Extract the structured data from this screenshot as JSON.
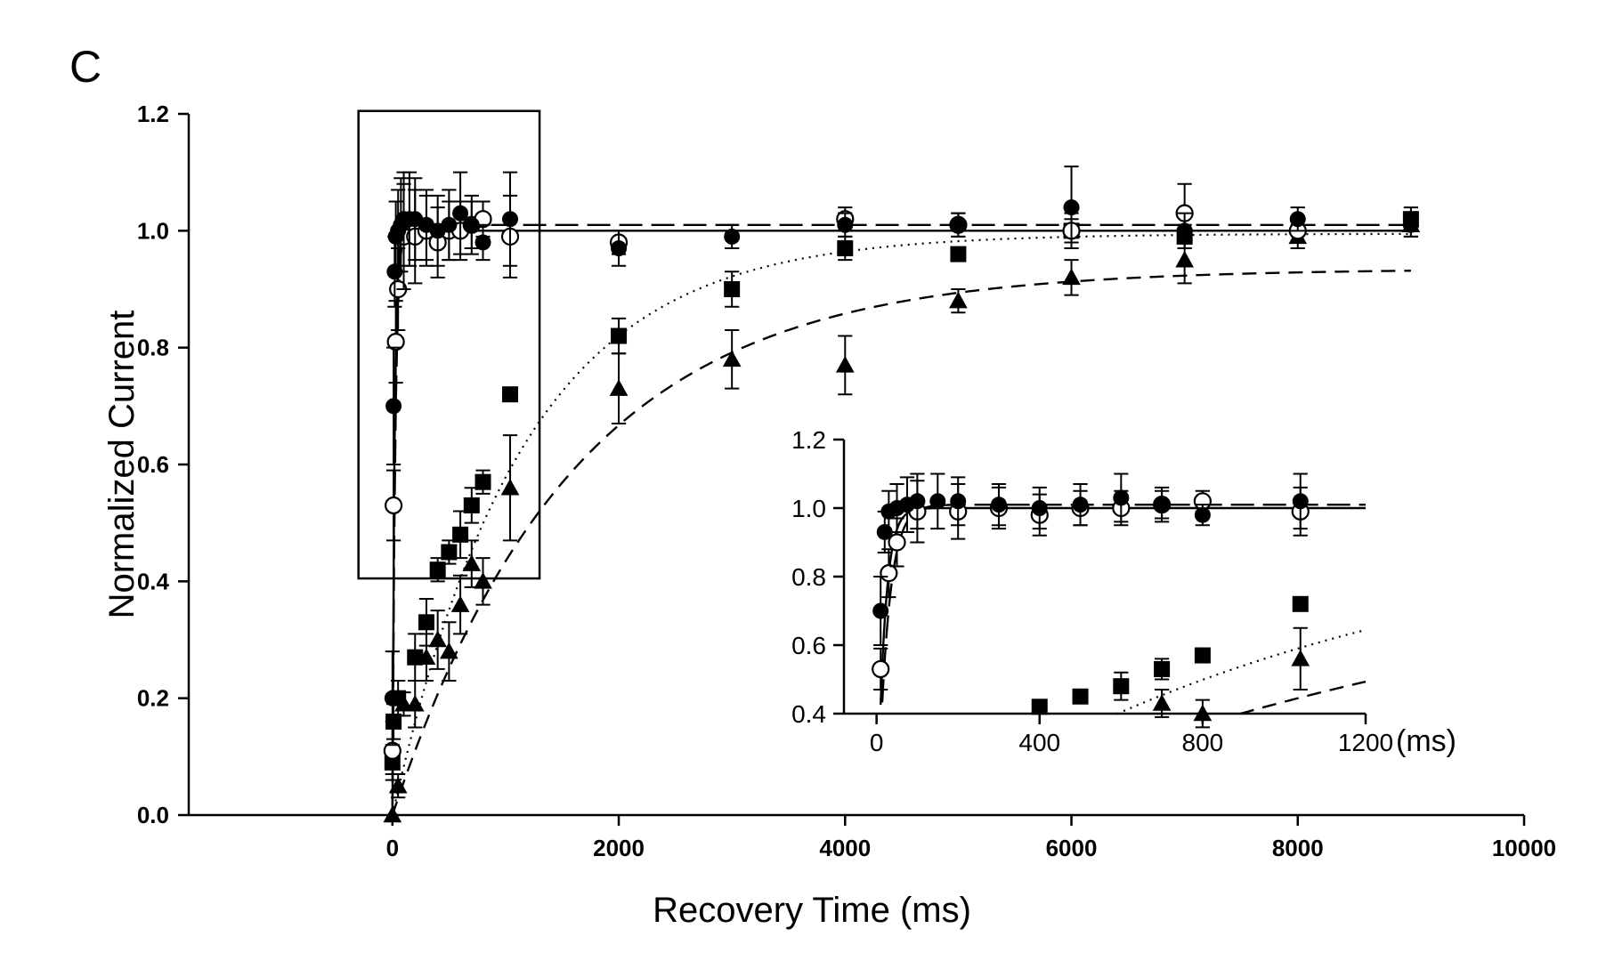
{
  "panel_label": "C",
  "chart_data": [
    {
      "type": "scatter",
      "xlabel": "Recovery Time (ms)",
      "ylabel": "Normalized Current",
      "xlim": [
        -1800,
        10000
      ],
      "ylim": [
        0,
        1.2
      ],
      "x_ticks": [
        0,
        2000,
        4000,
        6000,
        8000,
        10000
      ],
      "y_ticks": [
        0.0,
        0.2,
        0.4,
        0.6,
        0.8,
        1.0,
        1.2
      ],
      "x_tick_labels": [
        "0",
        "2000",
        "4000",
        "6000",
        "8000",
        "10000"
      ],
      "y_tick_labels": [
        "0.0",
        "0.2",
        "0.4",
        "0.6",
        "0.8",
        "1.0",
        "1.2"
      ],
      "zoom_box": {
        "x": [
          -300,
          1300
        ],
        "y": [
          0.405,
          1.205
        ]
      },
      "grid": false,
      "legend": "none",
      "series": [
        {
          "marker": "filled-circle",
          "points": [
            {
              "x": 0,
              "y": 0.2,
              "err": 0.08
            },
            {
              "x": 10,
              "y": 0.7,
              "err": 0.1
            },
            {
              "x": 20,
              "y": 0.93,
              "err": 0.06
            },
            {
              "x": 30,
              "y": 0.99,
              "err": 0.06
            },
            {
              "x": 50,
              "y": 1.0,
              "err": 0.07
            },
            {
              "x": 75,
              "y": 1.01,
              "err": 0.08
            },
            {
              "x": 100,
              "y": 1.02,
              "err": 0.08
            },
            {
              "x": 150,
              "y": 1.02,
              "err": 0.08
            },
            {
              "x": 200,
              "y": 1.02,
              "err": 0.07
            },
            {
              "x": 300,
              "y": 1.01,
              "err": 0.06
            },
            {
              "x": 400,
              "y": 1.0,
              "err": 0.06
            },
            {
              "x": 500,
              "y": 1.01,
              "err": 0.06
            },
            {
              "x": 600,
              "y": 1.03,
              "err": 0.07
            },
            {
              "x": 700,
              "y": 1.01,
              "err": 0.05
            },
            {
              "x": 800,
              "y": 0.98,
              "err": 0.03
            },
            {
              "x": 1040,
              "y": 1.02,
              "err": 0.08
            },
            {
              "x": 2000,
              "y": 0.97,
              "err": 0.03
            },
            {
              "x": 3000,
              "y": 0.99,
              "err": 0.02
            },
            {
              "x": 4000,
              "y": 1.01,
              "err": 0.02
            },
            {
              "x": 5000,
              "y": 1.01,
              "err": 0.02
            },
            {
              "x": 6000,
              "y": 1.04,
              "err": 0.07
            },
            {
              "x": 7000,
              "y": 1.0,
              "err": 0.03
            },
            {
              "x": 8000,
              "y": 1.02,
              "err": 0.02
            },
            {
              "x": 9000,
              "y": 1.01,
              "err": 0.02
            }
          ]
        },
        {
          "marker": "open-circle",
          "points": [
            {
              "x": 0,
              "y": 0.11,
              "err": 0.05
            },
            {
              "x": 10,
              "y": 0.53,
              "err": 0.06
            },
            {
              "x": 30,
              "y": 0.81,
              "err": 0.07
            },
            {
              "x": 50,
              "y": 0.9,
              "err": 0.07
            },
            {
              "x": 100,
              "y": 0.99,
              "err": 0.09
            },
            {
              "x": 200,
              "y": 0.99,
              "err": 0.08
            },
            {
              "x": 300,
              "y": 1.0,
              "err": 0.06
            },
            {
              "x": 400,
              "y": 0.98,
              "err": 0.06
            },
            {
              "x": 500,
              "y": 1.0,
              "err": 0.05
            },
            {
              "x": 600,
              "y": 1.0,
              "err": 0.05
            },
            {
              "x": 700,
              "y": 1.01,
              "err": 0.04
            },
            {
              "x": 800,
              "y": 1.02,
              "err": 0.03
            },
            {
              "x": 1040,
              "y": 0.99,
              "err": 0.07
            },
            {
              "x": 2000,
              "y": 0.98,
              "err": 0.02
            },
            {
              "x": 4000,
              "y": 1.02,
              "err": 0.02
            },
            {
              "x": 5000,
              "y": 1.01,
              "err": 0.02
            },
            {
              "x": 6000,
              "y": 1.0,
              "err": 0.02
            },
            {
              "x": 7000,
              "y": 1.03,
              "err": 0.05
            },
            {
              "x": 8000,
              "y": 1.0,
              "err": 0.02
            }
          ]
        },
        {
          "marker": "filled-square",
          "points": [
            {
              "x": 0,
              "y": 0.09,
              "err": 0.02
            },
            {
              "x": 10,
              "y": 0.16,
              "err": 0.03
            },
            {
              "x": 50,
              "y": 0.2,
              "err": 0.03
            },
            {
              "x": 200,
              "y": 0.27,
              "err": 0.04
            },
            {
              "x": 300,
              "y": 0.33,
              "err": 0.04
            },
            {
              "x": 400,
              "y": 0.42,
              "err": 0.02
            },
            {
              "x": 500,
              "y": 0.45,
              "err": 0.02
            },
            {
              "x": 600,
              "y": 0.48,
              "err": 0.04
            },
            {
              "x": 700,
              "y": 0.53,
              "err": 0.03
            },
            {
              "x": 800,
              "y": 0.57,
              "err": 0.02
            },
            {
              "x": 1040,
              "y": 0.72,
              "err": 0.0
            },
            {
              "x": 2000,
              "y": 0.82,
              "err": 0.03
            },
            {
              "x": 3000,
              "y": 0.9,
              "err": 0.03
            },
            {
              "x": 4000,
              "y": 0.97,
              "err": 0.02
            },
            {
              "x": 5000,
              "y": 0.96,
              "err": 0.0
            },
            {
              "x": 6000,
              "y": 1.0,
              "err": 0.03
            },
            {
              "x": 7000,
              "y": 0.99,
              "err": 0.02
            },
            {
              "x": 9000,
              "y": 1.02,
              "err": 0.02
            }
          ]
        },
        {
          "marker": "filled-triangle",
          "points": [
            {
              "x": 0,
              "y": 0.0,
              "err": 0.0
            },
            {
              "x": 50,
              "y": 0.05,
              "err": 0.02
            },
            {
              "x": 100,
              "y": 0.19,
              "err": 0.02
            },
            {
              "x": 200,
              "y": 0.19,
              "err": 0.04
            },
            {
              "x": 300,
              "y": 0.27,
              "err": 0.04
            },
            {
              "x": 400,
              "y": 0.3,
              "err": 0.05
            },
            {
              "x": 500,
              "y": 0.28,
              "err": 0.05
            },
            {
              "x": 600,
              "y": 0.36,
              "err": 0.05
            },
            {
              "x": 700,
              "y": 0.43,
              "err": 0.04
            },
            {
              "x": 800,
              "y": 0.4,
              "err": 0.04
            },
            {
              "x": 1040,
              "y": 0.56,
              "err": 0.09
            },
            {
              "x": 2000,
              "y": 0.73,
              "err": 0.06
            },
            {
              "x": 3000,
              "y": 0.78,
              "err": 0.05
            },
            {
              "x": 4000,
              "y": 0.77,
              "err": 0.05
            },
            {
              "x": 5000,
              "y": 0.88,
              "err": 0.02
            },
            {
              "x": 6000,
              "y": 0.92,
              "err": 0.03
            },
            {
              "x": 7000,
              "y": 0.95,
              "err": 0.04
            },
            {
              "x": 8000,
              "y": 0.99,
              "err": 0.02
            },
            {
              "x": 9000,
              "y": 1.01,
              "err": 0.02
            }
          ]
        }
      ],
      "fits": [
        {
          "style": "solid",
          "A": 1.0,
          "tau_ms": 18,
          "t0_ms": 0,
          "y0": 0.0
        },
        {
          "style": "long-dash",
          "A": 1.01,
          "tau_ms": 25,
          "t0_ms": 0,
          "y0": 0.0
        },
        {
          "style": "dotted",
          "A": 0.995,
          "tau_ms": 1150,
          "t0_ms": 0,
          "y0": 0.0
        },
        {
          "style": "dashed",
          "A": 0.935,
          "tau_ms": 1600,
          "t0_ms": 0,
          "y0": 0.0
        }
      ]
    },
    {
      "type": "scatter",
      "role": "inset",
      "xlim": [
        -80,
        1200
      ],
      "ylim": [
        0.4,
        1.2
      ],
      "x_ticks": [
        0,
        400,
        800,
        1200
      ],
      "y_ticks": [
        0.4,
        0.6,
        0.8,
        1.0,
        1.2
      ],
      "x_tick_labels": [
        "0",
        "400",
        "800",
        "1200"
      ],
      "y_tick_labels": [
        "0.4",
        "0.6",
        "0.8",
        "1.0",
        "1.2"
      ],
      "x_unit": "(ms)"
    }
  ]
}
